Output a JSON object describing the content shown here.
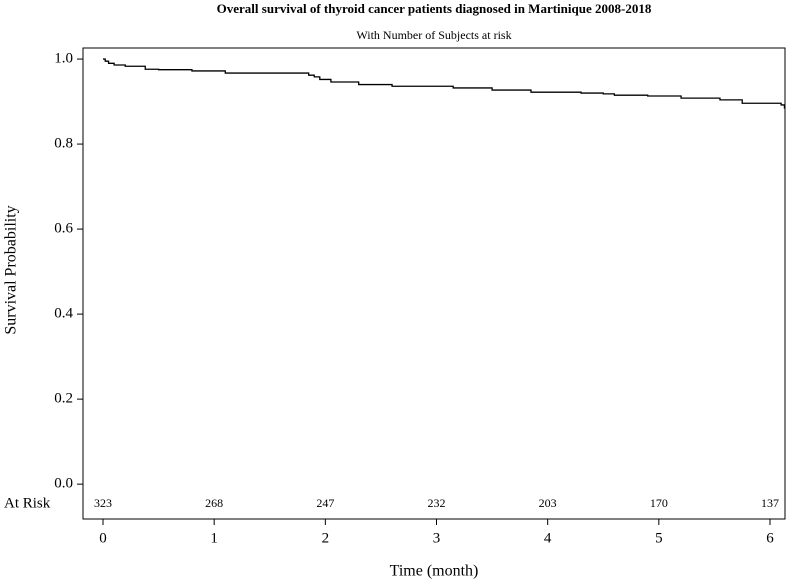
{
  "chart_data": {
    "type": "step",
    "title": "Overall survival of thyroid cancer patients diagnosed in Martinique 2008-2018",
    "subtitle": "With Number of Subjects at risk",
    "x_label": "Time (month)",
    "y_label": "Survival Probability",
    "color": "#000000",
    "x": [
      0,
      0.02,
      0.05,
      0.1,
      0.2,
      0.38,
      0.5,
      0.8,
      1.1,
      1.85,
      1.9,
      1.95,
      2.05,
      2.3,
      2.6,
      3.15,
      3.5,
      3.85,
      4.3,
      4.5,
      4.6,
      4.9,
      5.2,
      5.55,
      5.75,
      6.1,
      6.13
    ],
    "values": [
      1.0,
      0.995,
      0.99,
      0.986,
      0.983,
      0.976,
      0.975,
      0.972,
      0.967,
      0.962,
      0.958,
      0.952,
      0.946,
      0.94,
      0.936,
      0.932,
      0.927,
      0.922,
      0.92,
      0.918,
      0.915,
      0.913,
      0.908,
      0.904,
      0.896,
      0.892,
      0.885
    ],
    "xlim": [
      -0.18,
      6.135
    ],
    "ylim": [
      -0.082,
      1.026
    ],
    "xticks": [
      0,
      1,
      2,
      3,
      4,
      5,
      6
    ],
    "yticks": [
      {
        "value": 0,
        "label": "0.0"
      },
      {
        "value": 0.2,
        "label": "0.2"
      },
      {
        "value": 0.4,
        "label": "0.4"
      },
      {
        "value": 0.6,
        "label": "0.6"
      },
      {
        "value": 0.8,
        "label": "0.8"
      },
      {
        "value": 1,
        "label": "1.0"
      }
    ],
    "at_risk_label": "At Risk",
    "at_risk_counts": [
      323,
      268,
      247,
      232,
      203,
      170,
      137
    ]
  }
}
